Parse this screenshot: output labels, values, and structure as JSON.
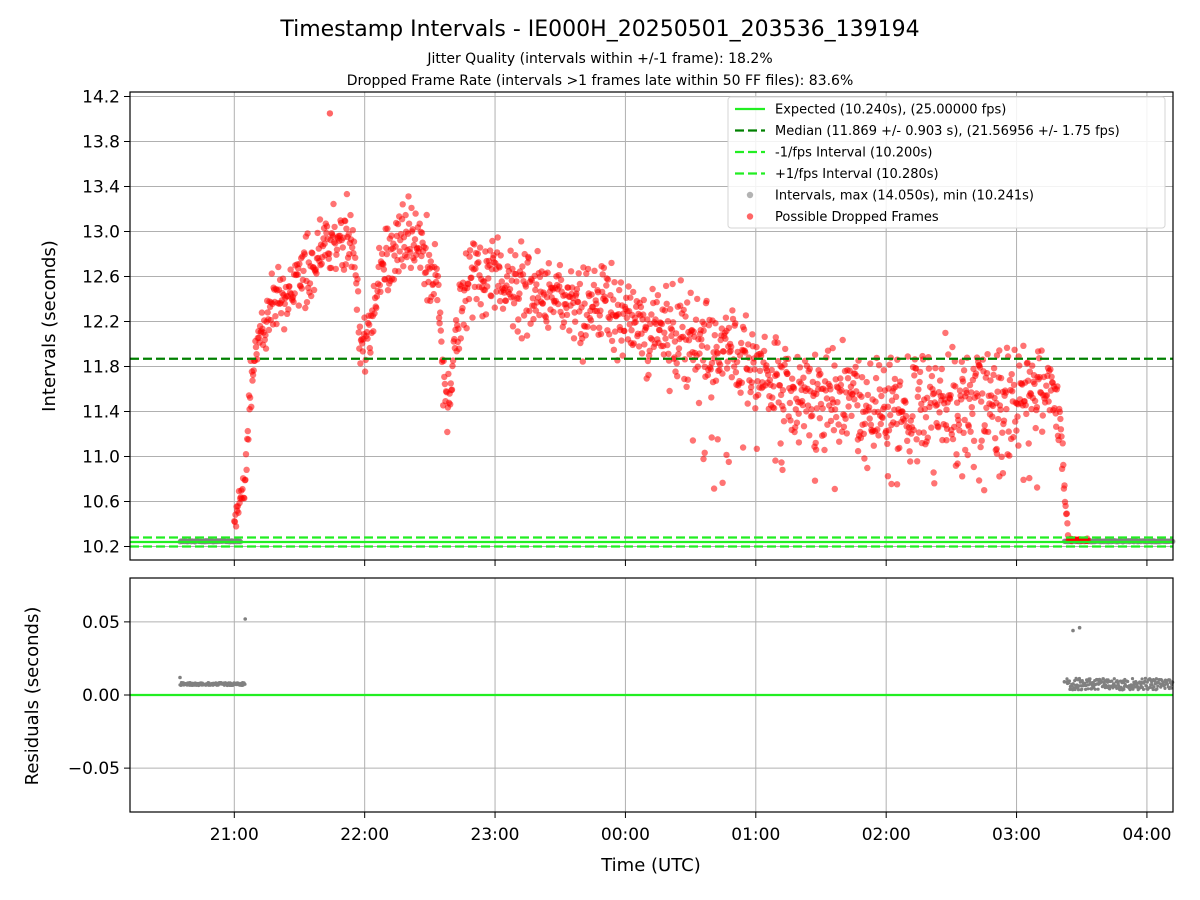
{
  "chart_data": {
    "title": "Timestamp Intervals - IE000H_20250501_203536_139194",
    "subtitle_lines": [
      "Jitter Quality (intervals within +/-1 frame): 18.2%",
      "Dropped Frame Rate (intervals >1 frames late within 50 FF files): 83.6%"
    ],
    "x_axis": {
      "label": "Time (UTC)",
      "range": [
        "20:12",
        "04:12"
      ],
      "ticks": [
        "21:00",
        "22:00",
        "23:00",
        "00:00",
        "01:00",
        "02:00",
        "03:00",
        "04:00"
      ],
      "grid": true
    },
    "panels": [
      {
        "id": "intervals",
        "type": "scatter",
        "ylabel": "Intervals (seconds)",
        "ylim": [
          10.08,
          14.24
        ],
        "yticks": [
          "10.2",
          "10.6",
          "11.0",
          "11.4",
          "11.8",
          "12.2",
          "12.6",
          "13.0",
          "13.4",
          "13.8",
          "14.2"
        ],
        "grid": true,
        "legend_position": "top-right",
        "reference_lines": [
          {
            "legend": "Expected (10.240s), (25.00000 fps)",
            "y": 10.24,
            "color": "#22ee22",
            "style": "solid"
          },
          {
            "legend": "Median (11.869 +/- 0.903 s), (21.56956 +/- 1.75 fps)",
            "y": 11.869,
            "color": "#008000",
            "style": "dashed"
          },
          {
            "legend": "-1/fps Interval (10.200s)",
            "y": 10.2,
            "color": "#22ee22",
            "style": "dashed"
          },
          {
            "legend": "+1/fps Interval (10.280s)",
            "y": 10.28,
            "color": "#22ee22",
            "style": "dashed"
          }
        ],
        "series": [
          {
            "legend": "Intervals, max (14.050s), min (10.241s)",
            "color": "#808080",
            "segments": [
              {
                "from": "20:35",
                "to": "21:03",
                "y": 10.247
              },
              {
                "from": "03:22",
                "to": "04:12",
                "y": 10.247
              }
            ]
          },
          {
            "legend": "Possible Dropped Frames",
            "color": "#ff0000",
            "envelope": [
              {
                "t": "21:00",
                "y": 10.4
              },
              {
                "t": "21:05",
                "y": 10.8
              },
              {
                "t": "21:08",
                "y": 11.7
              },
              {
                "t": "21:12",
                "y": 12.1
              },
              {
                "t": "21:20",
                "y": 12.4
              },
              {
                "t": "21:30",
                "y": 12.6
              },
              {
                "t": "21:40",
                "y": 12.9
              },
              {
                "t": "21:50",
                "y": 13.0
              },
              {
                "t": "21:55",
                "y": 12.8
              },
              {
                "t": "21:57",
                "y": 12.2
              },
              {
                "t": "22:00",
                "y": 11.95
              },
              {
                "t": "22:06",
                "y": 12.5
              },
              {
                "t": "22:15",
                "y": 12.9
              },
              {
                "t": "22:25",
                "y": 12.9
              },
              {
                "t": "22:33",
                "y": 12.5
              },
              {
                "t": "22:38",
                "y": 11.4
              },
              {
                "t": "22:45",
                "y": 12.5
              },
              {
                "t": "23:00",
                "y": 12.6
              },
              {
                "t": "23:30",
                "y": 12.4
              },
              {
                "t": "00:00",
                "y": 12.25
              },
              {
                "t": "00:30",
                "y": 12.05
              },
              {
                "t": "01:00",
                "y": 11.8
              },
              {
                "t": "01:30",
                "y": 11.5
              },
              {
                "t": "02:00",
                "y": 11.45
              },
              {
                "t": "02:30",
                "y": 11.45
              },
              {
                "t": "03:00",
                "y": 11.55
              },
              {
                "t": "03:15",
                "y": 11.65
              },
              {
                "t": "03:20",
                "y": 11.3
              },
              {
                "t": "03:22",
                "y": 10.7
              },
              {
                "t": "03:24",
                "y": 10.26
              },
              {
                "t": "03:33",
                "y": 10.25
              }
            ],
            "spread": [
              {
                "t": "20:58",
                "s": 0.08
              },
              {
                "t": "21:08",
                "s": 0.3
              },
              {
                "t": "21:40",
                "s": 0.35
              },
              {
                "t": "22:00",
                "s": 0.4
              },
              {
                "t": "23:00",
                "s": 0.42
              },
              {
                "t": "00:00",
                "s": 0.48
              },
              {
                "t": "01:00",
                "s": 0.55
              },
              {
                "t": "02:00",
                "s": 0.6
              },
              {
                "t": "03:00",
                "s": 0.65
              },
              {
                "t": "03:20",
                "s": 0.35
              },
              {
                "t": "03:24",
                "s": 0.02
              },
              {
                "t": "03:33",
                "s": 0.01
              }
            ],
            "max_point": {
              "t": "21:44",
              "y": 14.05
            }
          }
        ]
      },
      {
        "id": "residuals",
        "type": "scatter",
        "ylabel": "Residuals (seconds)",
        "ylim": [
          -0.08,
          0.08
        ],
        "yticks": [
          "0.05",
          "0.00",
          "−0.05"
        ],
        "grid": true,
        "reference_lines": [
          {
            "y": 0,
            "color": "#22ee22",
            "style": "solid"
          }
        ],
        "series": [
          {
            "color": "#808080",
            "segments": [
              {
                "from": "20:35",
                "to": "21:05",
                "y": 0.0075
              },
              {
                "from": "03:23",
                "to": "04:12",
                "y": 0.0075
              }
            ],
            "outliers": [
              {
                "t": "20:35",
                "y": 0.012
              },
              {
                "t": "21:05",
                "y": 0.052
              },
              {
                "t": "03:26",
                "y": 0.044
              },
              {
                "t": "03:29",
                "y": 0.046
              },
              {
                "t": "03:22",
                "y": 0.009
              }
            ]
          }
        ]
      }
    ]
  }
}
